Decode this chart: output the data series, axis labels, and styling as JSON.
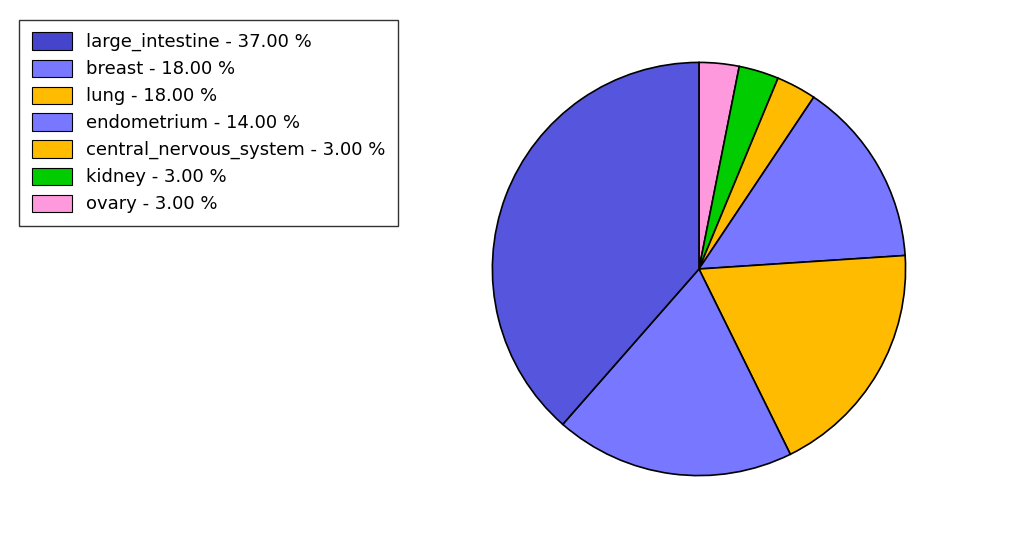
{
  "labels": [
    "large_intestine",
    "breast",
    "lung",
    "endometrium",
    "central_nervous_system",
    "kidney",
    "ovary"
  ],
  "values": [
    37.0,
    18.0,
    18.0,
    14.0,
    3.0,
    3.0,
    3.0
  ],
  "colors": [
    "#5555dd",
    "#7777ff",
    "#ffbb00",
    "#7777ff",
    "#ffbb00",
    "#00cc00",
    "#ff99dd"
  ],
  "legend_labels": [
    "large_intestine - 37.00 %",
    "breast - 18.00 %",
    "lung - 18.00 %",
    "endometrium - 14.00 %",
    "central_nervous_system - 3.00 %",
    "kidney - 3.00 %",
    "ovary - 3.00 %"
  ],
  "figsize": [
    10.13,
    5.38
  ],
  "dpi": 100,
  "legend_colors": [
    "#4444cc",
    "#7777ff",
    "#ffbb00",
    "#7777ff",
    "#ffbb00",
    "#00cc00",
    "#ff99dd"
  ]
}
